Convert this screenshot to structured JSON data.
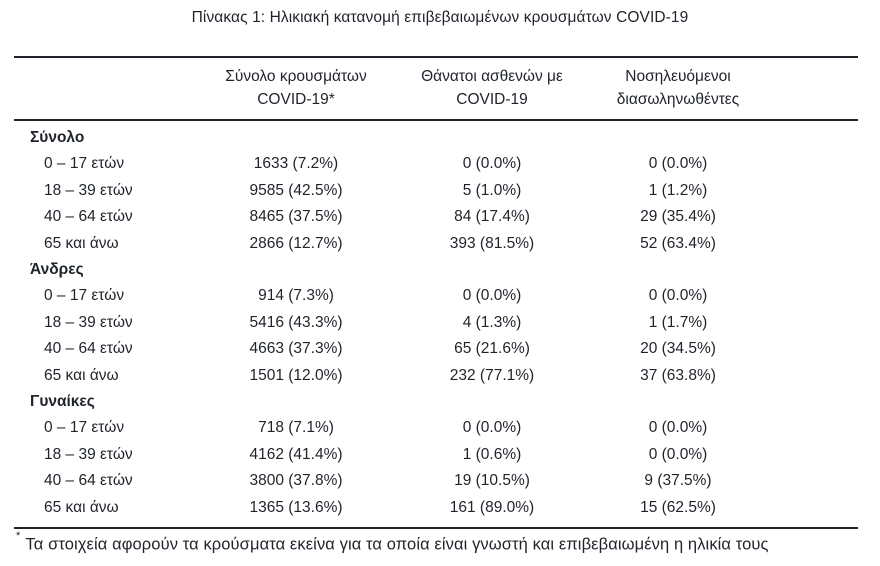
{
  "title": "Πίνακας 1: Ηλικιακή κατανομή επιβεβαιωμένων κρουσμάτων COVID-19",
  "colors": {
    "text": "#1f232a",
    "rule": "#1f232a",
    "background": "#ffffff"
  },
  "table": {
    "columns": [
      {
        "line1": "Σύνολο κρουσμάτων",
        "line2": "COVID-19*"
      },
      {
        "line1": "Θάνατοι ασθενών με",
        "line2": "COVID-19"
      },
      {
        "line1": "Νοσηλευόμενοι",
        "line2": "διασωληνωθέντες"
      }
    ],
    "sections": [
      {
        "label": "Σύνολο",
        "rows": [
          {
            "label": "0 – 17 ετών",
            "cases": "1633 (7.2%)",
            "deaths": "0 (0.0%)",
            "intubated": "0 (0.0%)"
          },
          {
            "label": "18 – 39 ετών",
            "cases": "9585 (42.5%)",
            "deaths": "5 (1.0%)",
            "intubated": "1 (1.2%)"
          },
          {
            "label": "40 – 64 ετών",
            "cases": "8465 (37.5%)",
            "deaths": "84 (17.4%)",
            "intubated": "29 (35.4%)"
          },
          {
            "label": "65 και άνω",
            "cases": "2866 (12.7%)",
            "deaths": "393 (81.5%)",
            "intubated": "52 (63.4%)"
          }
        ]
      },
      {
        "label": "Άνδρες",
        "rows": [
          {
            "label": "0 – 17 ετών",
            "cases": "914 (7.3%)",
            "deaths": "0 (0.0%)",
            "intubated": "0 (0.0%)"
          },
          {
            "label": "18 – 39 ετών",
            "cases": "5416 (43.3%)",
            "deaths": "4 (1.3%)",
            "intubated": "1 (1.7%)"
          },
          {
            "label": "40 – 64 ετών",
            "cases": "4663 (37.3%)",
            "deaths": "65 (21.6%)",
            "intubated": "20 (34.5%)"
          },
          {
            "label": "65 και άνω",
            "cases": "1501 (12.0%)",
            "deaths": "232 (77.1%)",
            "intubated": "37 (63.8%)"
          }
        ]
      },
      {
        "label": "Γυναίκες",
        "rows": [
          {
            "label": "0 – 17 ετών",
            "cases": "718 (7.1%)",
            "deaths": "0 (0.0%)",
            "intubated": "0 (0.0%)"
          },
          {
            "label": "18 – 39 ετών",
            "cases": "4162 (41.4%)",
            "deaths": "1 (0.6%)",
            "intubated": "0 (0.0%)"
          },
          {
            "label": "40 – 64 ετών",
            "cases": "3800 (37.8%)",
            "deaths": "19 (10.5%)",
            "intubated": "9 (37.5%)"
          },
          {
            "label": "65 και άνω",
            "cases": "1365 (13.6%)",
            "deaths": "161 (89.0%)",
            "intubated": "15 (62.5%)"
          }
        ]
      }
    ]
  },
  "footnote": {
    "marker": "*",
    "text": "Τα στοιχεία αφορούν τα κρούσματα εκείνα για τα οποία είναι γνωστή και επιβεβαιωμένη η ηλικία τους"
  }
}
